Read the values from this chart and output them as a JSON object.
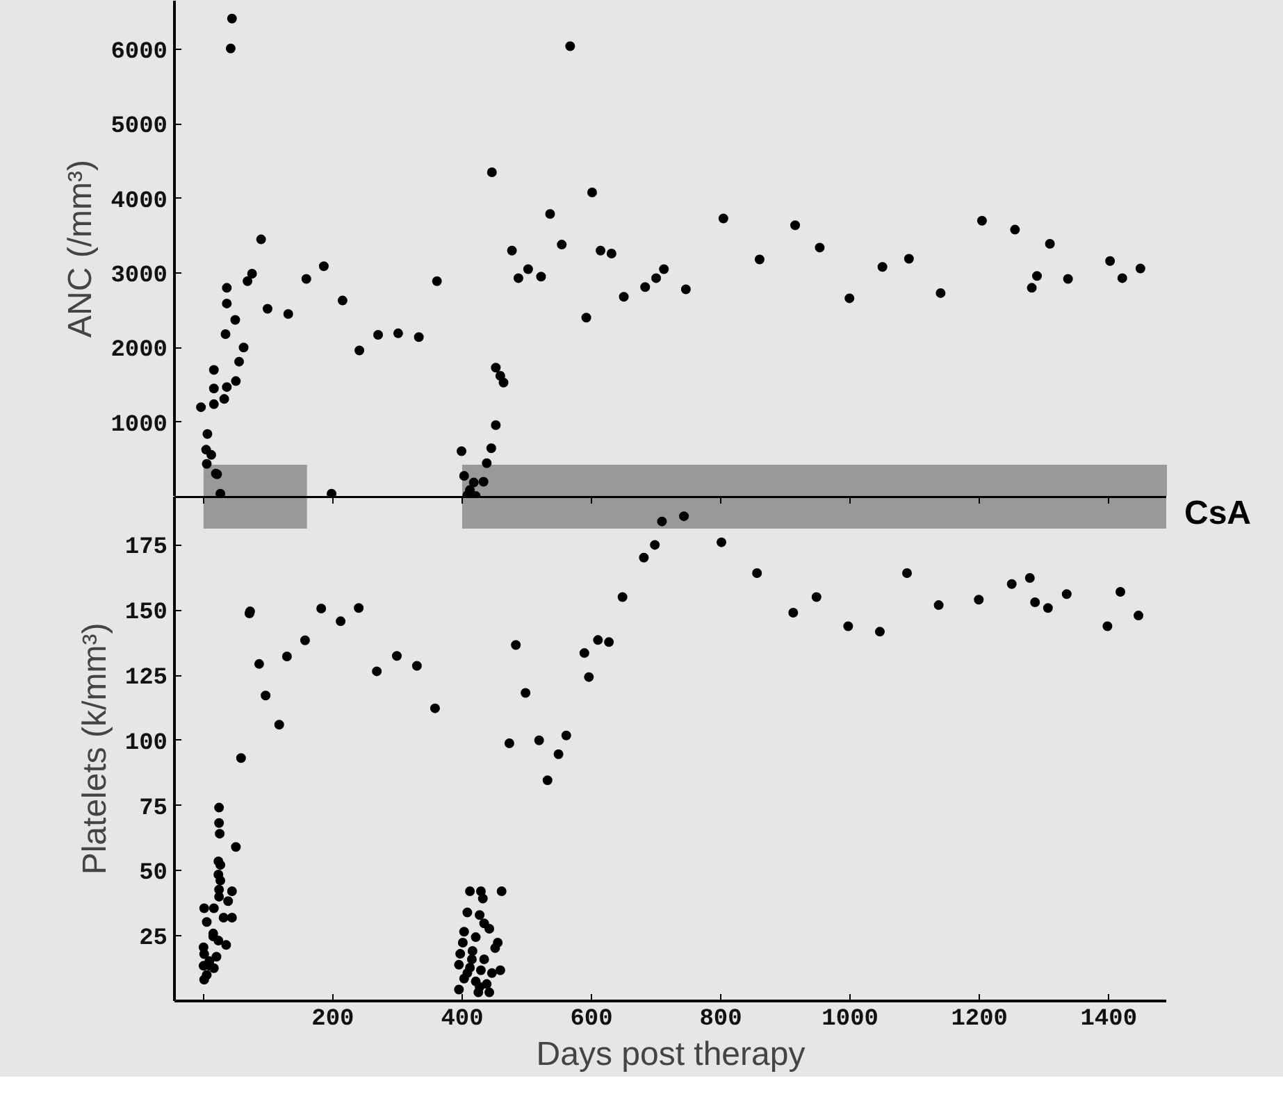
{
  "chart_data": [
    {
      "type": "scatter",
      "ylabel": "ANC (/mm³)",
      "xlim": [
        -45,
        1490
      ],
      "ylim": [
        0,
        6650
      ],
      "yticks": [
        1000,
        2000,
        3000,
        4000,
        5000,
        6000
      ],
      "tick_labels": "y",
      "marker": "circle",
      "color": "#000000",
      "bands": [
        {
          "axis": "x",
          "from": 0,
          "to": 160,
          "color": "#999999"
        },
        {
          "axis": "x",
          "from": 400,
          "to": 1490,
          "color": "#999999"
        }
      ],
      "x": [
        44,
        42,
        89,
        186,
        159,
        75,
        68,
        215,
        99,
        131,
        36,
        36,
        49,
        34,
        62,
        55,
        50,
        36,
        32,
        16,
        16,
        16,
        -4,
        241,
        6,
        4,
        12,
        5,
        19,
        21,
        26,
        198,
        270,
        301,
        333,
        361,
        567,
        446,
        601,
        536,
        554,
        477,
        614,
        631,
        487,
        502,
        522,
        592,
        650,
        683,
        700,
        712,
        746,
        804,
        860,
        915,
        953,
        999,
        1050,
        1091,
        1140,
        1204,
        1255,
        1309,
        1289,
        1281,
        1337,
        1402,
        1421,
        1449,
        452,
        459,
        464,
        452,
        445,
        438,
        399,
        403,
        412,
        418,
        433,
        421,
        408
      ],
      "values": [
        6410,
        6010,
        3450,
        3090,
        2920,
        2990,
        2890,
        2630,
        2520,
        2450,
        2800,
        2590,
        2370,
        2180,
        2000,
        1810,
        1550,
        1470,
        1310,
        1700,
        1450,
        1240,
        1200,
        1960,
        840,
        630,
        560,
        440,
        310,
        300,
        40,
        40,
        2170,
        2190,
        2140,
        2890,
        6040,
        4350,
        4080,
        3790,
        3380,
        3300,
        3300,
        3260,
        2930,
        3050,
        2950,
        2400,
        2680,
        2810,
        2930,
        3050,
        2780,
        3730,
        3180,
        3640,
        3340,
        2660,
        3080,
        3190,
        2730,
        3700,
        3580,
        3390,
        2960,
        2800,
        2920,
        3160,
        2930,
        3060,
        1730,
        1620,
        1530,
        960,
        650,
        450,
        610,
        280,
        90,
        190,
        200,
        10,
        20
      ]
    },
    {
      "type": "scatter",
      "xlabel": "Days post therapy",
      "ylabel": "Platelets (k/mm³)",
      "xlim": [
        -45,
        1490
      ],
      "ylim": [
        0,
        193.5
      ],
      "xticks": [
        {
          "value": 0,
          "label": null
        },
        200,
        400,
        600,
        800,
        1000,
        1200,
        1400
      ],
      "yticks": [
        25,
        50,
        75,
        100,
        125,
        150,
        175
      ],
      "marker": "circle",
      "color": "#000000",
      "bands": [
        {
          "axis": "x",
          "from": 0,
          "to": 160,
          "color": "#999999"
        },
        {
          "axis": "x",
          "from": 400,
          "to": 1490,
          "color": "#999999",
          "label": "CsA"
        }
      ],
      "x": [
        212,
        240,
        268,
        299,
        330,
        358,
        681,
        698,
        801,
        648,
        856,
        912,
        948,
        997,
        1046,
        1088,
        1137,
        1199,
        1250,
        1278,
        1286,
        1306,
        1335,
        1398,
        1418,
        1446,
        483,
        498,
        473,
        519,
        549,
        532,
        561,
        589,
        596,
        610,
        627,
        709,
        743,
        71,
        72,
        86,
        96,
        117,
        129,
        157,
        182,
        58,
        50,
        24,
        24,
        25,
        23,
        26,
        23,
        26,
        24,
        44,
        24,
        38,
        16,
        1,
        31,
        44,
        5,
        15,
        23,
        35,
        0,
        1,
        9,
        16,
        5,
        1,
        15,
        10,
        20,
        0,
        412,
        429,
        432,
        461,
        408,
        427,
        442,
        403,
        421,
        455,
        397,
        416,
        434,
        451,
        395,
        412,
        429,
        446,
        403,
        421,
        438,
        395,
        425,
        442,
        408,
        459,
        401,
        434,
        415,
        427
      ],
      "values": [
        145.7,
        150.8,
        126.5,
        132.4,
        128.6,
        112.3,
        170.1,
        175,
        176,
        155,
        164.2,
        149,
        155,
        143.8,
        141.7,
        164.2,
        151.9,
        154,
        160,
        162.3,
        153,
        150.8,
        156.1,
        143.8,
        157,
        147.9,
        136.6,
        118.2,
        98.9,
        100,
        94.7,
        84.7,
        101.9,
        133.5,
        124.3,
        138.5,
        137.7,
        184,
        186,
        148.7,
        149.5,
        129.3,
        117.2,
        106,
        132.2,
        138.4,
        150.6,
        93.2,
        59.1,
        74.2,
        68.3,
        64.2,
        53.6,
        52.2,
        48.5,
        46.2,
        42.7,
        42.1,
        40,
        38.3,
        35.6,
        35.6,
        32,
        32,
        30.3,
        25.9,
        23.2,
        21.5,
        20.6,
        18,
        15.3,
        12.6,
        10,
        8.2,
        24.8,
        13.5,
        17,
        13.5,
        42.1,
        42.1,
        39.3,
        42.1,
        34.0,
        33.0,
        27.7,
        26.6,
        24.5,
        22.4,
        18.1,
        19.2,
        16.0,
        20.3,
        13.9,
        12.8,
        11.8,
        10.7,
        8.6,
        7.5,
        6.5,
        4.4,
        3.3,
        3.3,
        10.7,
        11.8,
        22.4,
        29.8,
        16.0,
        5.4
      ]
    }
  ]
}
